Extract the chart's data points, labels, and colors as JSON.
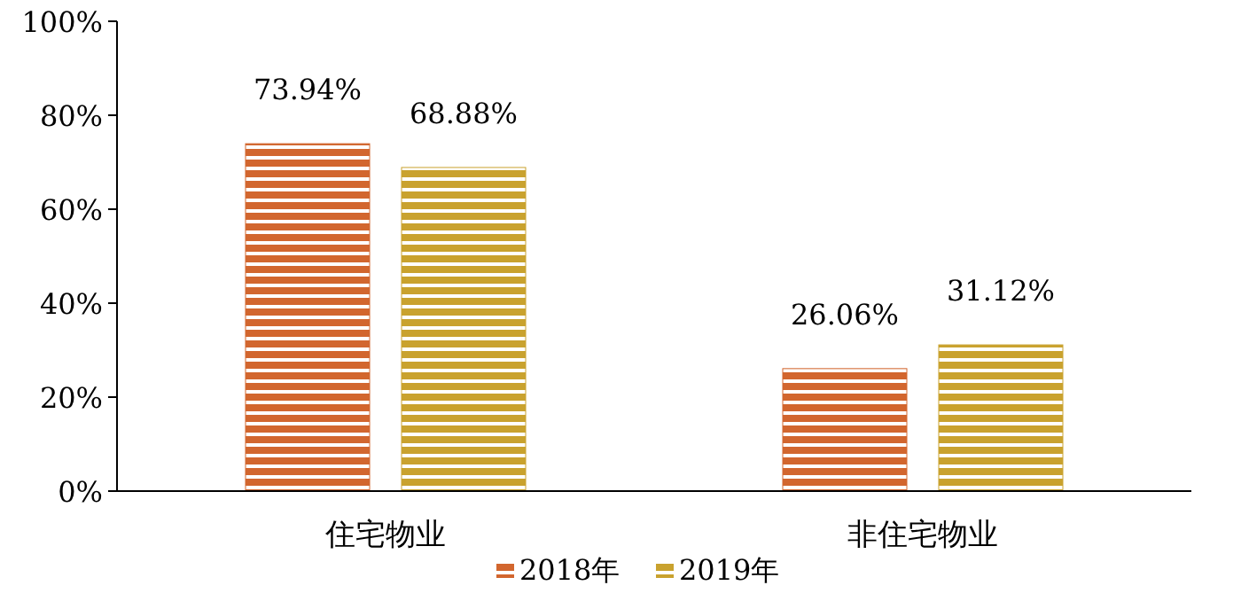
{
  "chart_data": {
    "type": "bar",
    "categories": [
      "住宅物业",
      "非住宅物业"
    ],
    "series": [
      {
        "name": "2018年",
        "color": "#d2662e",
        "values": [
          73.94,
          26.06
        ],
        "value_labels": [
          "73.94%",
          "26.06%"
        ]
      },
      {
        "name": "2019年",
        "color": "#c9a22e",
        "values": [
          68.88,
          31.12
        ],
        "value_labels": [
          "68.88%",
          "31.12%"
        ]
      }
    ],
    "ylim": [
      0,
      100
    ],
    "yticks": [
      {
        "value": 0,
        "label": "0%"
      },
      {
        "value": 20,
        "label": "20%"
      },
      {
        "value": 40,
        "label": "40%"
      },
      {
        "value": 60,
        "label": "60%"
      },
      {
        "value": 80,
        "label": "80%"
      },
      {
        "value": 100,
        "label": "100%"
      }
    ],
    "grid": false,
    "legend": "bottom"
  }
}
